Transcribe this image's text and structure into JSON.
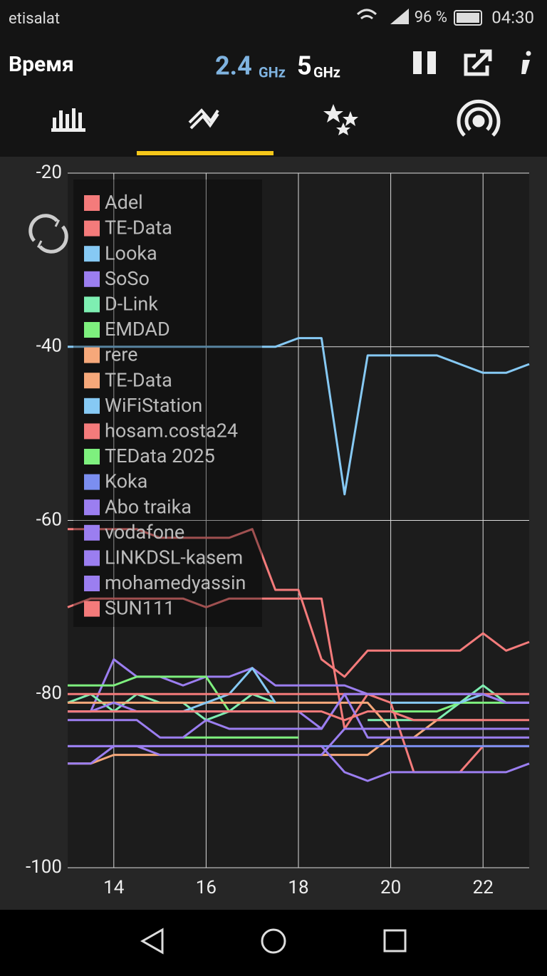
{
  "status_bar": {
    "carrier": "etisalat",
    "battery": "96 %",
    "time": "04:30"
  },
  "toolbar": {
    "title": "Время",
    "band_a": "2.4",
    "band_a_unit": "GHz",
    "band_b": "5",
    "band_b_unit": "GHz"
  },
  "chart_data": {
    "type": "line",
    "xlim": [
      13,
      23
    ],
    "ylim": [
      -100,
      -20
    ],
    "xticks": [
      14,
      16,
      18,
      20,
      22
    ],
    "yticks": [
      -20,
      -40,
      -60,
      -80,
      -100
    ],
    "grid": true,
    "legend": "top-left",
    "x": [
      13,
      13.5,
      14,
      14.5,
      15,
      15.5,
      16,
      16.5,
      17,
      17.5,
      18,
      18.5,
      19,
      19.5,
      20,
      20.5,
      21,
      21.5,
      22,
      22.5,
      23
    ],
    "series": [
      {
        "name": "Adel",
        "color": "#f47b7b",
        "values": [
          -61,
          -61,
          -61,
          -61,
          -62,
          -62,
          -62,
          -62,
          -61,
          -68,
          -68,
          -76,
          -78,
          -75,
          -75,
          -75,
          -75,
          -75,
          -73,
          -75,
          -74
        ]
      },
      {
        "name": "TE-Data",
        "color": "#f47b7b",
        "values": [
          -70,
          -69,
          -69,
          -69,
          -69,
          -69,
          -70,
          -69,
          -69,
          -69,
          -69,
          -69,
          -84,
          -80,
          -81,
          -89,
          -89,
          -89,
          -86,
          -86,
          -86
        ]
      },
      {
        "name": "Looka",
        "color": "#86c9f4",
        "values": [
          -40,
          -40,
          -40,
          -40,
          -40,
          -40,
          -40,
          -40,
          -40,
          -40,
          -39,
          -39,
          -57,
          -41,
          -41,
          -41,
          -41,
          -42,
          -43,
          -43,
          -42
        ]
      },
      {
        "name": "SoSo",
        "color": "#9b7ef0",
        "values": [
          -82,
          -82,
          -76,
          -78,
          -78,
          -79,
          -78,
          -78,
          -77,
          -79,
          -79,
          -79,
          -79,
          -80,
          -80,
          -80,
          -80,
          -80,
          -80,
          -81,
          -81
        ]
      },
      {
        "name": "D-Link",
        "color": "#7eefb2",
        "values": [
          -81,
          -80,
          -82,
          -80,
          -81,
          -81,
          -83,
          -82,
          -80,
          -81,
          null,
          null,
          null,
          -83,
          -83,
          -83,
          -83,
          -81,
          -79,
          -81,
          null
        ]
      },
      {
        "name": "EMDAD",
        "color": "#7ef07e",
        "values": [
          -79,
          -79,
          -79,
          -78,
          -78,
          -78,
          -78,
          -82,
          null,
          null,
          null,
          null,
          null,
          null,
          -82,
          -82,
          -82,
          -81,
          -81,
          -81,
          null
        ]
      },
      {
        "name": "rere",
        "color": "#f6a87a",
        "values": [
          -88,
          -88,
          -87,
          -87,
          -87,
          -87,
          -87,
          -87,
          -87,
          -87,
          -87,
          -87,
          -87,
          -87,
          -85,
          -85,
          -83,
          -83,
          -83,
          null,
          null
        ]
      },
      {
        "name": "TE-Data",
        "color": "#f6a87a",
        "values": [
          -81,
          -81,
          -81,
          -81,
          -81,
          -81,
          -81,
          -81,
          -81,
          -81,
          -81,
          -81,
          -81,
          -81,
          -84,
          -84,
          -84,
          -84,
          -84,
          -84,
          -84
        ]
      },
      {
        "name": "WiFiStation",
        "color": "#86c9f4",
        "values": [
          -82,
          -82,
          -82,
          -82,
          -82,
          -82,
          -81,
          -80,
          -77,
          -81,
          null,
          null,
          null,
          null,
          -81,
          -81,
          -81,
          -81,
          -80,
          -81,
          -81
        ]
      },
      {
        "name": "hosam.costa24",
        "color": "#f47b7b",
        "values": [
          -80,
          -80,
          -80,
          -80,
          -80,
          -80,
          -80,
          -80,
          -80,
          -80,
          -80,
          -80,
          -80,
          -80,
          -80,
          -80,
          -80,
          -80,
          -80,
          -80,
          -80
        ]
      },
      {
        "name": "TEData 2025",
        "color": "#7ef07e",
        "values": [
          null,
          null,
          null,
          null,
          null,
          -85,
          -85,
          -85,
          -85,
          -85,
          -85,
          null,
          null,
          null,
          null,
          null,
          null,
          null,
          null,
          null,
          null
        ]
      },
      {
        "name": "Koka",
        "color": "#7b8ef0",
        "values": [
          -86,
          -86,
          -86,
          -86,
          -86,
          -86,
          -86,
          -86,
          -86,
          -86,
          -86,
          -86,
          -86,
          -86,
          -86,
          -86,
          -86,
          -86,
          -86,
          -86,
          -86
        ]
      },
      {
        "name": "Abo traika",
        "color": "#9b7ef0",
        "values": [
          -88,
          -88,
          -86,
          -86,
          -86,
          -86,
          -86,
          -86,
          -86,
          -86,
          -86,
          -86,
          -89,
          -90,
          -89,
          -89,
          -89,
          -89,
          -89,
          -89,
          -88
        ]
      },
      {
        "name": "vodafone",
        "color": "#9b7ef0",
        "values": [
          -86,
          -86,
          -86,
          -86,
          -87,
          -87,
          -87,
          -87,
          -87,
          -87,
          -87,
          -87,
          -84,
          -84,
          -84,
          -84,
          -84,
          -84,
          -84,
          -84,
          -84
        ]
      },
      {
        "name": "LINKDSL-kasem",
        "color": "#9b7ef0",
        "values": [
          -83,
          -83,
          -83,
          -83,
          -85,
          -85,
          -83,
          -84,
          -84,
          -84,
          -84,
          -84,
          -80,
          -85,
          -85,
          -85,
          -85,
          -85,
          -85,
          -85,
          -85
        ]
      },
      {
        "name": "mohamedyassin",
        "color": "#9b7ef0",
        "values": [
          -82,
          -82,
          -81,
          -82,
          -82,
          -82,
          -82,
          -82,
          -82,
          -82,
          -82,
          -84,
          -80,
          -80,
          -80,
          -80,
          -80,
          -80,
          -80,
          -81,
          -81
        ]
      },
      {
        "name": "SUN111",
        "color": "#f47b7b",
        "values": [
          -82,
          -82,
          -82,
          -82,
          -82,
          -82,
          -82,
          -82,
          -82,
          -82,
          -82,
          -82,
          -83,
          -82,
          -82,
          -83,
          -83,
          -83,
          -83,
          -83,
          -83
        ]
      }
    ]
  }
}
